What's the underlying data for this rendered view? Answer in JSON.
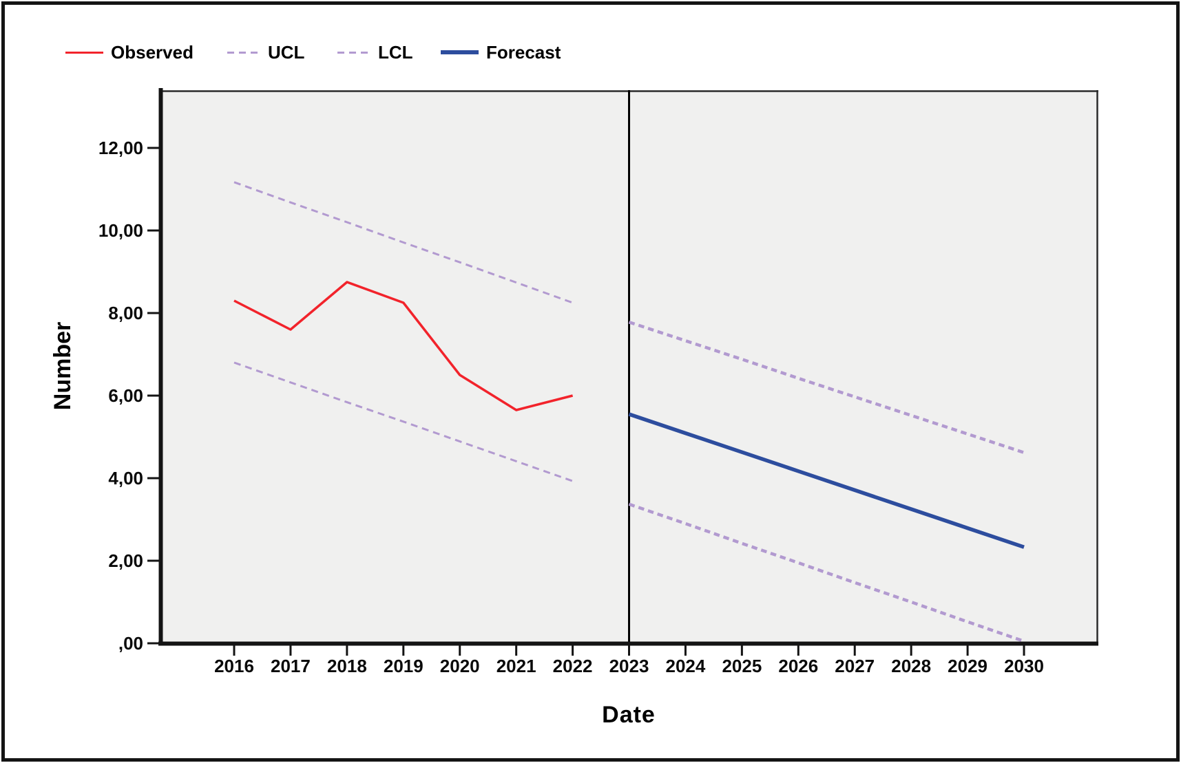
{
  "figure": {
    "background": "#ffffff",
    "border_color": "#141414",
    "plot_background": "#f0f0ef",
    "axis_color": "#141414",
    "separator_color": "#000000"
  },
  "legend": {
    "items": [
      {
        "label": "Observed",
        "style": "solid",
        "color": "#f2232b",
        "thickness": 3
      },
      {
        "label": "UCL",
        "style": "dashed",
        "color": "#b29ad0",
        "thickness": 3
      },
      {
        "label": "LCL",
        "style": "dashed",
        "color": "#b29ad0",
        "thickness": 3
      },
      {
        "label": "Forecast",
        "style": "solid",
        "color": "#2d4d9e",
        "thickness": 6
      }
    ]
  },
  "axes": {
    "y_label": "Number",
    "x_label": "Date",
    "y_ticks": [
      {
        "label": "12,00",
        "value": 12
      },
      {
        "label": "10,00",
        "value": 10
      },
      {
        "label": "8,00",
        "value": 8
      },
      {
        "label": "6,00",
        "value": 6
      },
      {
        "label": "4,00",
        "value": 4
      },
      {
        "label": "2,00",
        "value": 2
      },
      {
        "label": ",00",
        "value": 0
      }
    ],
    "x_ticks": [
      {
        "label": "2016",
        "value": 2016
      },
      {
        "label": "2017",
        "value": 2017
      },
      {
        "label": "2018",
        "value": 2018
      },
      {
        "label": "2019",
        "value": 2019
      },
      {
        "label": "2020",
        "value": 2020
      },
      {
        "label": "2021",
        "value": 2021
      },
      {
        "label": "2022",
        "value": 2022
      },
      {
        "label": "2023",
        "value": 2023
      },
      {
        "label": "2024",
        "value": 2024
      },
      {
        "label": "2025",
        "value": 2025
      },
      {
        "label": "2026",
        "value": 2026
      },
      {
        "label": "2027",
        "value": 2027
      },
      {
        "label": "2028",
        "value": 2028
      },
      {
        "label": "2029",
        "value": 2029
      },
      {
        "label": "2030",
        "value": 2030
      }
    ]
  },
  "chart_data": {
    "type": "line",
    "title": "",
    "xlabel": "Date",
    "ylabel": "Number",
    "xlim": [
      2014.7,
      2031.3
    ],
    "ylim": [
      0,
      13.4
    ],
    "grid": false,
    "legend_position": "top-left",
    "forecast_separator_x": 2023,
    "series": [
      {
        "name": "UCL_fit",
        "legend": "UCL",
        "color": "#b29ad0",
        "style": "dashed",
        "width": 3,
        "x": [
          2016,
          2017,
          2018,
          2019,
          2020,
          2021,
          2022
        ],
        "values": [
          11.17,
          10.68,
          10.2,
          9.71,
          9.23,
          8.74,
          8.25
        ]
      },
      {
        "name": "LCL_fit",
        "legend": "LCL",
        "color": "#b29ad0",
        "style": "dashed",
        "width": 3,
        "x": [
          2016,
          2017,
          2018,
          2019,
          2020,
          2021,
          2022
        ],
        "values": [
          6.8,
          6.32,
          5.84,
          5.37,
          4.89,
          4.41,
          3.93
        ]
      },
      {
        "name": "UCL_forecast",
        "legend": "UCL",
        "color": "#b29ad0",
        "style": "dashed",
        "width": 4.5,
        "x": [
          2023,
          2024,
          2025,
          2026,
          2027,
          2028,
          2029,
          2030
        ],
        "values": [
          7.78,
          7.33,
          6.88,
          6.42,
          5.97,
          5.52,
          5.07,
          4.62
        ]
      },
      {
        "name": "LCL_forecast",
        "legend": "LCL",
        "color": "#b29ad0",
        "style": "dashed",
        "width": 4.5,
        "x": [
          2023,
          2024,
          2025,
          2026,
          2027,
          2028,
          2029,
          2030
        ],
        "values": [
          3.37,
          2.9,
          2.42,
          1.95,
          1.47,
          1.0,
          0.52,
          0.05
        ]
      },
      {
        "name": "Observed",
        "legend": "Observed",
        "color": "#f2232b",
        "style": "solid",
        "width": 3.5,
        "x": [
          2016,
          2017,
          2018,
          2019,
          2020,
          2021,
          2022
        ],
        "values": [
          8.3,
          7.6,
          8.75,
          8.25,
          6.5,
          5.65,
          6.0
        ]
      },
      {
        "name": "Forecast",
        "legend": "Forecast",
        "color": "#2d4d9e",
        "style": "solid",
        "width": 5.5,
        "x": [
          2023,
          2024,
          2025,
          2026,
          2027,
          2028,
          2029,
          2030
        ],
        "values": [
          5.55,
          5.09,
          4.63,
          4.17,
          3.71,
          3.25,
          2.79,
          2.33
        ]
      }
    ]
  }
}
